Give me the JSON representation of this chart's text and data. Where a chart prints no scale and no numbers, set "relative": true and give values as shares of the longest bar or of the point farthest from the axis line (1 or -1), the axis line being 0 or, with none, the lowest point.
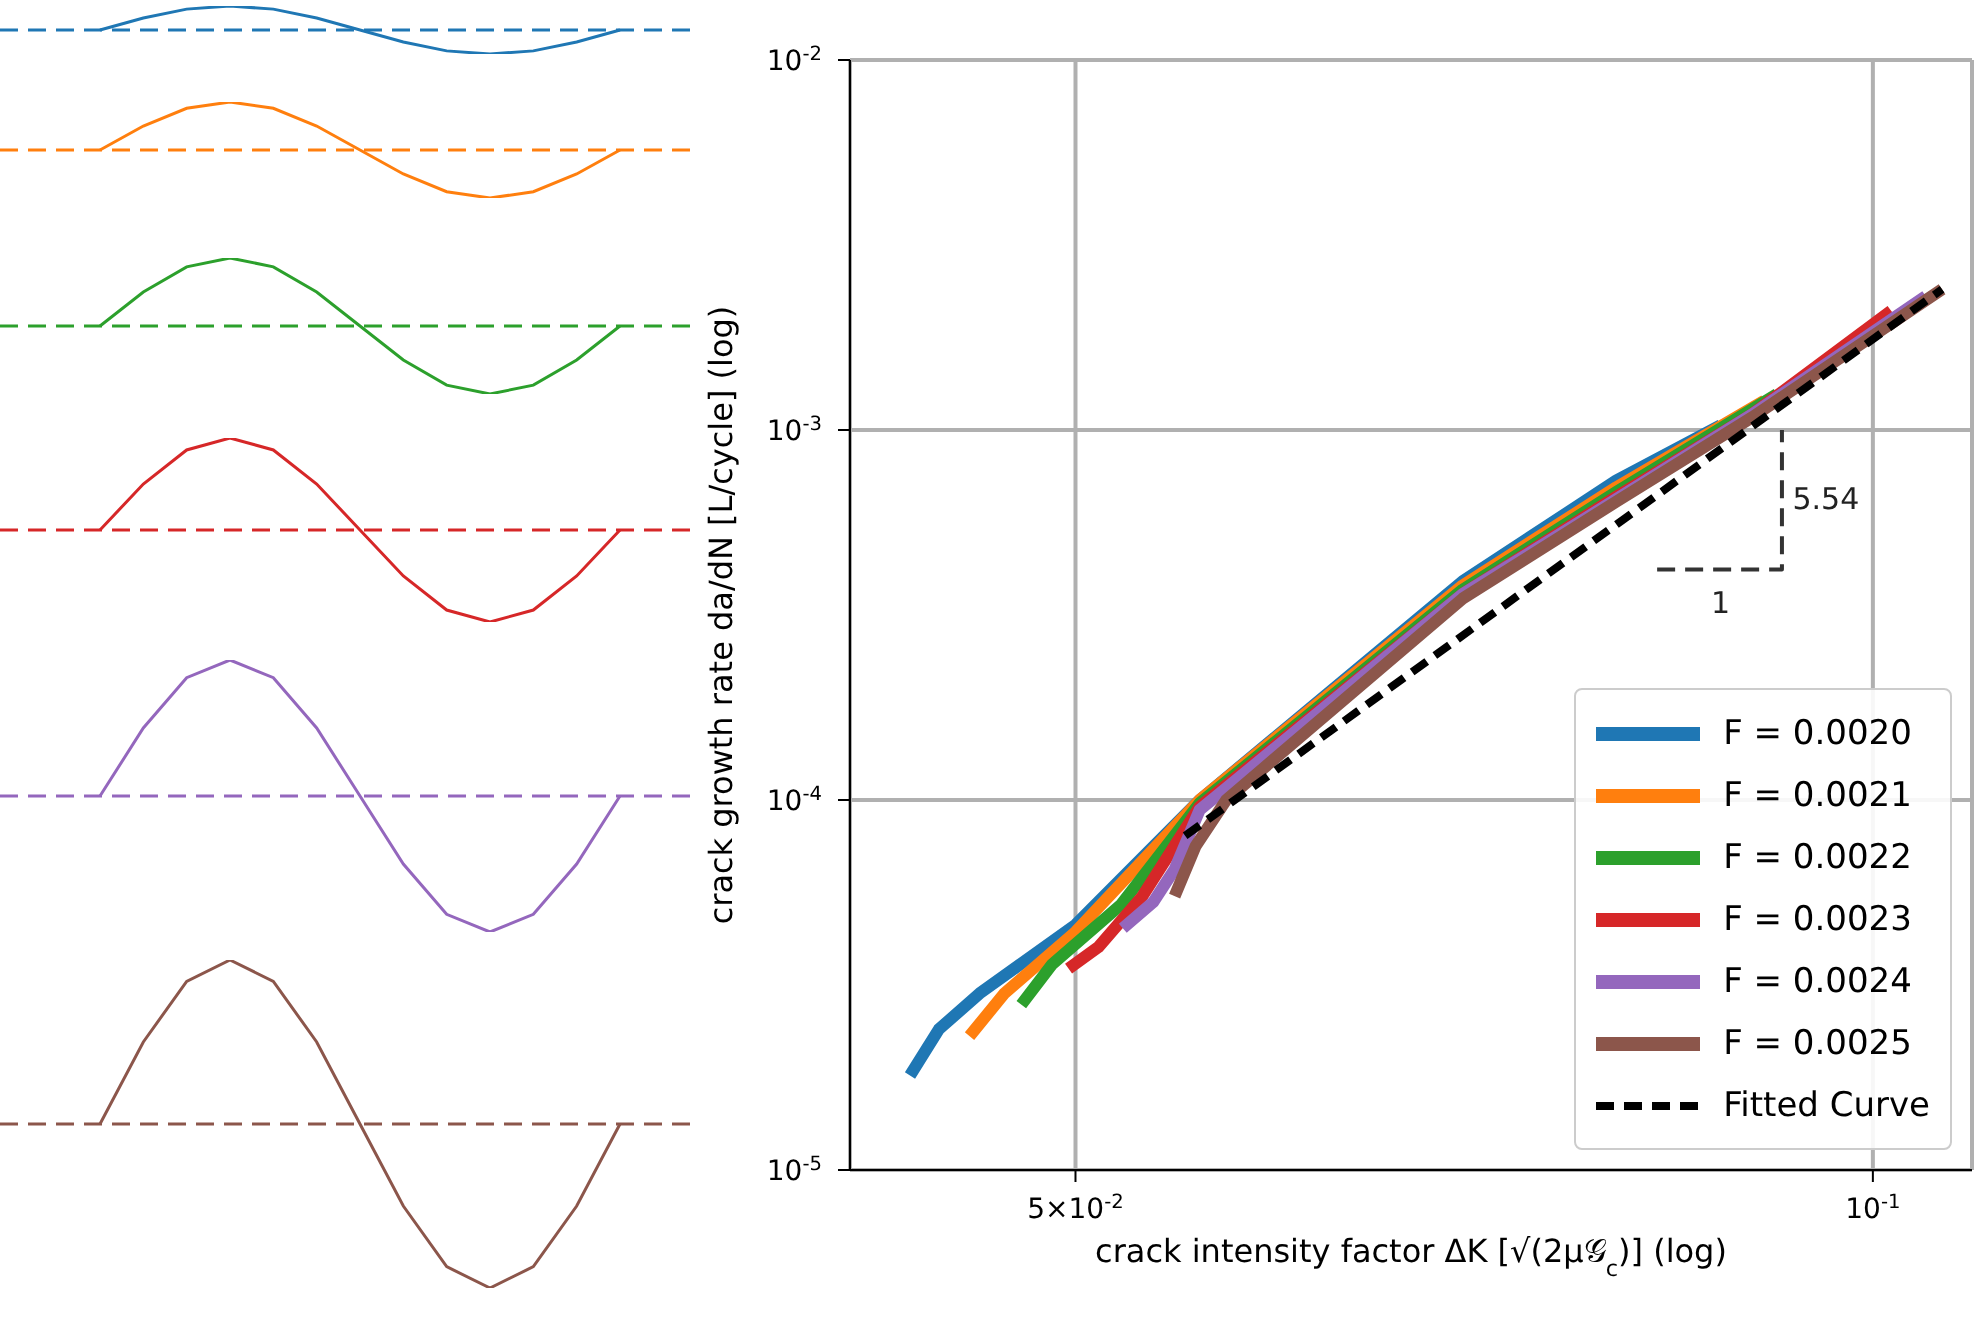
{
  "chart_data": [
    {
      "type": "line",
      "relative": true,
      "categories": [
        null,
        null,
        null,
        null,
        null,
        null,
        null,
        null,
        null,
        null,
        null,
        null,
        null
      ],
      "series": [
        {
          "color": "#1f77b4",
          "values": [
            0,
            0.5,
            0.87,
            1,
            0.87,
            0.5,
            0,
            -0.5,
            -0.87,
            -1,
            -0.87,
            -0.5,
            0
          ]
        }
      ],
      "ref_lines": [
        {
          "axis": "y",
          "value": 0,
          "color": "#1f77b4",
          "line_style": "dashed"
        }
      ]
    },
    {
      "type": "line",
      "relative": true,
      "categories": [
        null,
        null,
        null,
        null,
        null,
        null,
        null,
        null,
        null,
        null,
        null,
        null,
        null
      ],
      "series": [
        {
          "color": "#ff7f0e",
          "values": [
            0,
            0.5,
            0.87,
            1,
            0.87,
            0.5,
            0,
            -0.5,
            -0.87,
            -1,
            -0.87,
            -0.5,
            0
          ]
        }
      ],
      "ref_lines": [
        {
          "axis": "y",
          "value": 0,
          "color": "#ff7f0e",
          "line_style": "dashed"
        }
      ]
    },
    {
      "type": "line",
      "relative": true,
      "categories": [
        null,
        null,
        null,
        null,
        null,
        null,
        null,
        null,
        null,
        null,
        null,
        null,
        null
      ],
      "series": [
        {
          "color": "#2ca02c",
          "values": [
            0,
            0.5,
            0.87,
            1,
            0.87,
            0.5,
            0,
            -0.5,
            -0.87,
            -1,
            -0.87,
            -0.5,
            0
          ]
        }
      ],
      "ref_lines": [
        {
          "axis": "y",
          "value": 0,
          "color": "#2ca02c",
          "line_style": "dashed"
        }
      ]
    },
    {
      "type": "line",
      "relative": true,
      "categories": [
        null,
        null,
        null,
        null,
        null,
        null,
        null,
        null,
        null,
        null,
        null,
        null,
        null
      ],
      "series": [
        {
          "color": "#d62728",
          "values": [
            0,
            0.5,
            0.87,
            1,
            0.87,
            0.5,
            0,
            -0.5,
            -0.87,
            -1,
            -0.87,
            -0.5,
            0
          ]
        }
      ],
      "ref_lines": [
        {
          "axis": "y",
          "value": 0,
          "color": "#d62728",
          "line_style": "dashed"
        }
      ]
    },
    {
      "type": "line",
      "relative": true,
      "categories": [
        null,
        null,
        null,
        null,
        null,
        null,
        null,
        null,
        null,
        null,
        null,
        null,
        null
      ],
      "series": [
        {
          "color": "#9467bd",
          "values": [
            0,
            0.5,
            0.87,
            1,
            0.87,
            0.5,
            0,
            -0.5,
            -0.87,
            -1,
            -0.87,
            -0.5,
            0
          ]
        }
      ],
      "ref_lines": [
        {
          "axis": "y",
          "value": 0,
          "color": "#9467bd",
          "line_style": "dashed"
        }
      ]
    },
    {
      "type": "line",
      "relative": true,
      "categories": [
        null,
        null,
        null,
        null,
        null,
        null,
        null,
        null,
        null,
        null,
        null,
        null,
        null
      ],
      "series": [
        {
          "color": "#8c564b",
          "values": [
            0,
            0.5,
            0.87,
            1,
            0.87,
            0.5,
            0,
            -0.5,
            -0.87,
            -1,
            -0.87,
            -0.5,
            0
          ]
        }
      ],
      "ref_lines": [
        {
          "axis": "y",
          "value": 0,
          "color": "#8c564b",
          "line_style": "dashed"
        }
      ]
    },
    {
      "type": "line",
      "xlabel": "crack intensity factor ΔK [√(2μ𝒢$_{c}$)] (log)",
      "ylabel": "crack growth rate da/dN [L/cycle] (log)",
      "log": "xy",
      "grid": true,
      "legend": "bottom right",
      "line_style": "solid",
      "marker": "none",
      "xlim": [
        0.0411,
        0.109
      ],
      "xticks": [
        {
          "value": 0.05,
          "label": "5×10$^{-2}$"
        },
        {
          "value": 0.1,
          "label": "10$^{-1}$"
        }
      ],
      "ylim": [
        1e-05,
        0.01
      ],
      "yticks": [
        {
          "value": 1e-05,
          "label": "10$^{-5}$"
        },
        {
          "value": 0.0001,
          "label": "10$^{-4}$"
        },
        {
          "value": 0.001,
          "label": "10$^{-3}$"
        },
        {
          "value": 0.01,
          "label": "10$^{-2}$"
        }
      ],
      "series": [
        {
          "name": "F = 0.0020",
          "color": "#1f77b4",
          "x": [
            0.0433,
            0.0444,
            0.046,
            0.05,
            0.0557,
            0.07,
            0.08,
            0.0876
          ],
          "values": [
            1.8e-05,
            2.4e-05,
            3e-05,
            4.6e-05,
            0.0001,
            0.00039,
            0.00073,
            0.00103
          ]
        },
        {
          "name": "F = 0.0021",
          "color": "#ff7f0e",
          "x": [
            0.0456,
            0.047,
            0.05,
            0.0557,
            0.07,
            0.08,
            0.091
          ],
          "values": [
            2.3e-05,
            3e-05,
            4.4e-05,
            0.0001,
            0.00038,
            0.0007,
            0.0012
          ]
        },
        {
          "name": "F = 0.0022",
          "color": "#2ca02c",
          "x": [
            0.0477,
            0.049,
            0.052,
            0.0557,
            0.07,
            0.08,
            0.092
          ],
          "values": [
            2.8e-05,
            3.6e-05,
            5.2e-05,
            9.8e-05,
            0.00037,
            0.00068,
            0.00125
          ]
        },
        {
          "name": "F = 0.0023",
          "color": "#d62728",
          "x": [
            0.0497,
            0.051,
            0.053,
            0.0557,
            0.07,
            0.08,
            0.09,
            0.1016
          ],
          "values": [
            3.5e-05,
            4e-05,
            5.5e-05,
            9.6e-05,
            0.00036,
            0.00066,
            0.0011,
            0.0021
          ]
        },
        {
          "name": "F = 0.0024",
          "color": "#9467bd",
          "x": [
            0.0521,
            0.0535,
            0.0545,
            0.0557,
            0.07,
            0.08,
            0.09,
            0.1047
          ],
          "values": [
            4.5e-05,
            5.3e-05,
            6.5e-05,
            9.4e-05,
            0.00036,
            0.00065,
            0.0011,
            0.0023
          ]
        },
        {
          "name": "F = 0.0025",
          "color": "#8c564b",
          "x": [
            0.0545,
            0.0555,
            0.057,
            0.07,
            0.08,
            0.09,
            0.1062
          ],
          "values": [
            5.5e-05,
            7.5e-05,
            0.0001,
            0.00035,
            0.00064,
            0.00108,
            0.0024
          ]
        },
        {
          "name": "Fitted Curve",
          "color": "#000000",
          "line_style": "dashed",
          "x": [
            0.055,
            0.1062
          ],
          "values": [
            8e-05,
            0.0024
          ]
        },
        {
          "color": "#333333",
          "line_style": "dashed",
          "x": [
            0.0829,
            0.0924,
            0.0924
          ],
          "values": [
            0.00042,
            0.00042,
            0.001
          ]
        }
      ],
      "annotations": [
        {
          "text": "5.54",
          "x": 0.0924,
          "y": 0.00065
        },
        {
          "text": "1",
          "x": 0.0876,
          "y": 0.00042
        }
      ]
    }
  ]
}
